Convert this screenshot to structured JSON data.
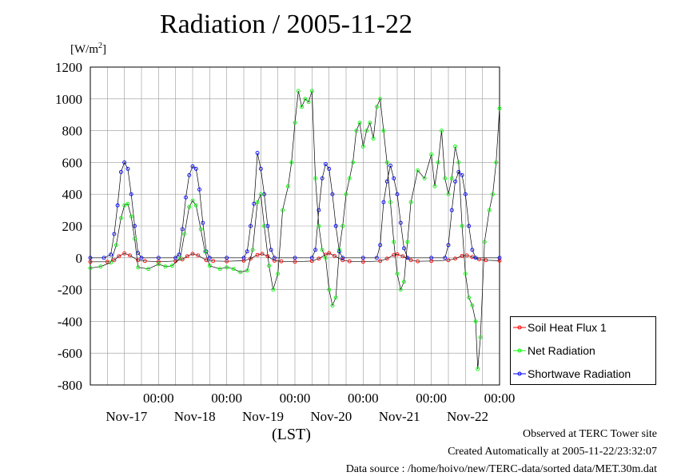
{
  "title": "Radiation / 2005-11-22",
  "ylabel_unit": "W/m",
  "ylabel_sup": "2",
  "xlabel": "(LST)",
  "footer": {
    "line1": "Observed at TERC Tower site",
    "line2": "Created Automatically at 2005-11-22/23:32:07",
    "line3": "Data source : /home/hoivo/new/TERC-data/sorted data/MET.30m.dat"
  },
  "chart_data": {
    "type": "line",
    "title": "Radiation / 2005-11-22",
    "ylabel": "[W/m2]",
    "xlabel": "(LST)",
    "xlim_days": [
      0,
      6
    ],
    "ylim": [
      -800,
      1200
    ],
    "y_ticks": [
      -800,
      -600,
      -400,
      -200,
      0,
      200,
      400,
      600,
      800,
      1000,
      1200
    ],
    "x_ticks": [
      {
        "time": "00:00",
        "date": "Nov-17"
      },
      {
        "time": "00:00",
        "date": "Nov-18"
      },
      {
        "time": "00:00",
        "date": "Nov-19"
      },
      {
        "time": "00:00",
        "date": "Nov-20"
      },
      {
        "time": "00:00",
        "date": "Nov-21"
      },
      {
        "time": "00:00",
        "date": "Nov-22"
      }
    ],
    "grid": true,
    "legend_position": "bottom-right outside",
    "series": [
      {
        "name": "Soil Heat Flux 1",
        "color": "#ff0000",
        "marker": "circle",
        "points": [
          [
            0.0,
            -25
          ],
          [
            0.25,
            -25
          ],
          [
            0.35,
            -15
          ],
          [
            0.42,
            10
          ],
          [
            0.5,
            28
          ],
          [
            0.58,
            15
          ],
          [
            0.7,
            -15
          ],
          [
            0.8,
            -20
          ],
          [
            1.0,
            -25
          ],
          [
            1.25,
            -20
          ],
          [
            1.35,
            -10
          ],
          [
            1.42,
            10
          ],
          [
            1.5,
            25
          ],
          [
            1.58,
            15
          ],
          [
            1.7,
            -15
          ],
          [
            1.8,
            -20
          ],
          [
            2.0,
            -22
          ],
          [
            2.25,
            -18
          ],
          [
            2.35,
            -5
          ],
          [
            2.45,
            18
          ],
          [
            2.52,
            25
          ],
          [
            2.6,
            10
          ],
          [
            2.7,
            -18
          ],
          [
            2.8,
            -22
          ],
          [
            3.0,
            -25
          ],
          [
            3.25,
            -20
          ],
          [
            3.35,
            -5
          ],
          [
            3.45,
            20
          ],
          [
            3.5,
            30
          ],
          [
            3.58,
            12
          ],
          [
            3.7,
            -15
          ],
          [
            3.8,
            -22
          ],
          [
            4.0,
            -25
          ],
          [
            4.25,
            -20
          ],
          [
            4.35,
            -5
          ],
          [
            4.45,
            18
          ],
          [
            4.5,
            22
          ],
          [
            4.58,
            10
          ],
          [
            4.7,
            -15
          ],
          [
            4.8,
            -22
          ],
          [
            5.0,
            -20
          ],
          [
            5.25,
            -15
          ],
          [
            5.35,
            -5
          ],
          [
            5.45,
            12
          ],
          [
            5.52,
            15
          ],
          [
            5.6,
            5
          ],
          [
            5.7,
            -10
          ],
          [
            5.8,
            -15
          ],
          [
            6.0,
            -18
          ]
        ]
      },
      {
        "name": "Net Radiation",
        "color": "#00ff00",
        "marker": "circle",
        "points": [
          [
            0.0,
            -65
          ],
          [
            0.15,
            -55
          ],
          [
            0.3,
            -30
          ],
          [
            0.38,
            80
          ],
          [
            0.45,
            250
          ],
          [
            0.5,
            330
          ],
          [
            0.55,
            340
          ],
          [
            0.6,
            260
          ],
          [
            0.65,
            120
          ],
          [
            0.7,
            -60
          ],
          [
            0.85,
            -70
          ],
          [
            1.0,
            -40
          ],
          [
            1.1,
            -55
          ],
          [
            1.2,
            -50
          ],
          [
            1.32,
            0
          ],
          [
            1.38,
            150
          ],
          [
            1.45,
            320
          ],
          [
            1.5,
            360
          ],
          [
            1.55,
            330
          ],
          [
            1.62,
            180
          ],
          [
            1.68,
            40
          ],
          [
            1.75,
            -50
          ],
          [
            1.9,
            -70
          ],
          [
            2.0,
            -60
          ],
          [
            2.1,
            -70
          ],
          [
            2.2,
            -90
          ],
          [
            2.3,
            -80
          ],
          [
            2.38,
            50
          ],
          [
            2.45,
            350
          ],
          [
            2.5,
            400
          ],
          [
            2.55,
            200
          ],
          [
            2.62,
            -50
          ],
          [
            2.68,
            -200
          ],
          [
            2.75,
            -100
          ],
          [
            2.82,
            300
          ],
          [
            2.9,
            450
          ],
          [
            2.95,
            600
          ],
          [
            3.0,
            850
          ],
          [
            3.05,
            1050
          ],
          [
            3.1,
            950
          ],
          [
            3.15,
            1000
          ],
          [
            3.2,
            980
          ],
          [
            3.25,
            1050
          ],
          [
            3.3,
            500
          ],
          [
            3.35,
            200
          ],
          [
            3.4,
            50
          ],
          [
            3.45,
            0
          ],
          [
            3.5,
            -200
          ],
          [
            3.55,
            -300
          ],
          [
            3.6,
            -250
          ],
          [
            3.65,
            50
          ],
          [
            3.7,
            200
          ],
          [
            3.75,
            400
          ],
          [
            3.8,
            500
          ],
          [
            3.85,
            600
          ],
          [
            3.9,
            800
          ],
          [
            3.95,
            850
          ],
          [
            4.0,
            700
          ],
          [
            4.05,
            800
          ],
          [
            4.1,
            850
          ],
          [
            4.15,
            750
          ],
          [
            4.2,
            950
          ],
          [
            4.25,
            1000
          ],
          [
            4.3,
            800
          ],
          [
            4.35,
            600
          ],
          [
            4.4,
            350
          ],
          [
            4.45,
            100
          ],
          [
            4.5,
            -100
          ],
          [
            4.55,
            -200
          ],
          [
            4.6,
            -150
          ],
          [
            4.65,
            100
          ],
          [
            4.7,
            350
          ],
          [
            4.8,
            550
          ],
          [
            4.9,
            500
          ],
          [
            5.0,
            650
          ],
          [
            5.05,
            450
          ],
          [
            5.1,
            600
          ],
          [
            5.15,
            800
          ],
          [
            5.2,
            500
          ],
          [
            5.25,
            400
          ],
          [
            5.3,
            500
          ],
          [
            5.35,
            700
          ],
          [
            5.4,
            600
          ],
          [
            5.45,
            200
          ],
          [
            5.5,
            -100
          ],
          [
            5.55,
            -250
          ],
          [
            5.6,
            -300
          ],
          [
            5.65,
            -400
          ],
          [
            5.68,
            -700
          ],
          [
            5.72,
            -500
          ],
          [
            5.78,
            100
          ],
          [
            5.85,
            300
          ],
          [
            5.9,
            400
          ],
          [
            5.95,
            600
          ],
          [
            6.0,
            940
          ]
        ]
      },
      {
        "name": "Shortwave Radiation",
        "color": "#0000ff",
        "marker": "circle",
        "points": [
          [
            0.0,
            0
          ],
          [
            0.2,
            0
          ],
          [
            0.3,
            20
          ],
          [
            0.35,
            150
          ],
          [
            0.4,
            330
          ],
          [
            0.45,
            540
          ],
          [
            0.5,
            600
          ],
          [
            0.55,
            560
          ],
          [
            0.6,
            400
          ],
          [
            0.65,
            200
          ],
          [
            0.7,
            30
          ],
          [
            0.75,
            0
          ],
          [
            1.0,
            0
          ],
          [
            1.25,
            0
          ],
          [
            1.3,
            20
          ],
          [
            1.35,
            180
          ],
          [
            1.4,
            380
          ],
          [
            1.45,
            520
          ],
          [
            1.5,
            575
          ],
          [
            1.55,
            560
          ],
          [
            1.6,
            430
          ],
          [
            1.65,
            220
          ],
          [
            1.7,
            40
          ],
          [
            1.75,
            0
          ],
          [
            2.0,
            0
          ],
          [
            2.25,
            0
          ],
          [
            2.3,
            40
          ],
          [
            2.35,
            200
          ],
          [
            2.4,
            340
          ],
          [
            2.45,
            660
          ],
          [
            2.5,
            560
          ],
          [
            2.55,
            400
          ],
          [
            2.6,
            200
          ],
          [
            2.65,
            50
          ],
          [
            2.7,
            0
          ],
          [
            3.0,
            0
          ],
          [
            3.25,
            0
          ],
          [
            3.3,
            50
          ],
          [
            3.35,
            300
          ],
          [
            3.4,
            500
          ],
          [
            3.45,
            590
          ],
          [
            3.5,
            560
          ],
          [
            3.55,
            400
          ],
          [
            3.6,
            200
          ],
          [
            3.65,
            40
          ],
          [
            3.7,
            0
          ],
          [
            4.0,
            0
          ],
          [
            4.2,
            0
          ],
          [
            4.25,
            80
          ],
          [
            4.3,
            350
          ],
          [
            4.35,
            480
          ],
          [
            4.4,
            580
          ],
          [
            4.45,
            500
          ],
          [
            4.5,
            400
          ],
          [
            4.55,
            220
          ],
          [
            4.6,
            60
          ],
          [
            4.65,
            0
          ],
          [
            5.0,
            0
          ],
          [
            5.2,
            0
          ],
          [
            5.25,
            80
          ],
          [
            5.3,
            300
          ],
          [
            5.35,
            480
          ],
          [
            5.4,
            540
          ],
          [
            5.45,
            520
          ],
          [
            5.5,
            400
          ],
          [
            5.55,
            200
          ],
          [
            5.6,
            50
          ],
          [
            5.65,
            0
          ],
          [
            6.0,
            0
          ]
        ]
      }
    ]
  }
}
